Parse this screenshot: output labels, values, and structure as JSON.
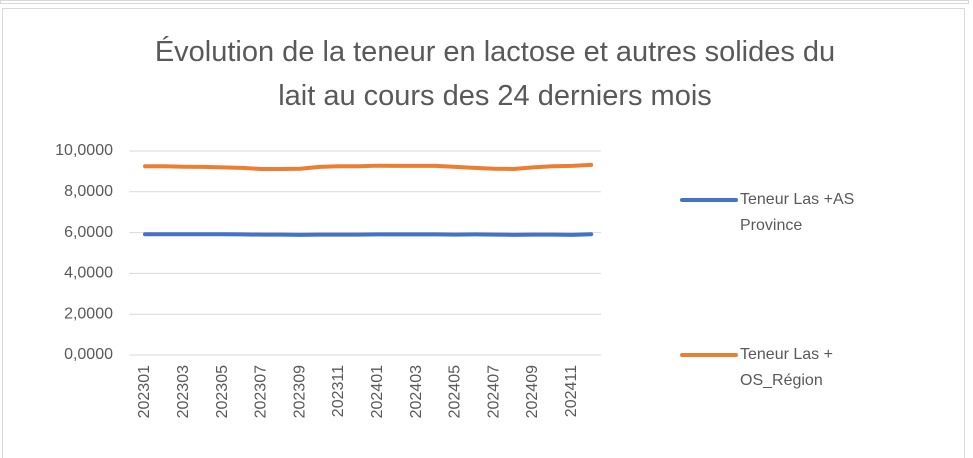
{
  "chart_data": {
    "type": "line",
    "title": "Évolution de la teneur en lactose et autres solides du lait au cours des 24 derniers mois",
    "categories": [
      "202301",
      null,
      "202303",
      null,
      "202305",
      null,
      "202307",
      null,
      "202309",
      null,
      "202311",
      null,
      "202401",
      null,
      "202403",
      null,
      "202405",
      null,
      "202407",
      null,
      "202409",
      null,
      "202411",
      null
    ],
    "series": [
      {
        "name": "Teneur Las +AS Province",
        "color": "#4472c4",
        "values": [
          5.92,
          5.92,
          5.92,
          5.92,
          5.92,
          5.91,
          5.9,
          5.9,
          5.89,
          5.9,
          5.9,
          5.9,
          5.91,
          5.91,
          5.91,
          5.91,
          5.9,
          5.91,
          5.9,
          5.89,
          5.9,
          5.9,
          5.89,
          5.92
        ]
      },
      {
        "name": "Teneur Las + OS_Région",
        "color": "#ed7d31",
        "values": [
          9.25,
          9.25,
          9.23,
          9.22,
          9.2,
          9.17,
          9.12,
          9.12,
          9.13,
          9.22,
          9.25,
          9.25,
          9.28,
          9.27,
          9.27,
          9.27,
          9.22,
          9.17,
          9.13,
          9.12,
          9.2,
          9.25,
          9.27,
          9.32
        ]
      }
    ],
    "ylim": [
      0,
      10
    ],
    "yticks": [
      {
        "value": 0,
        "label": "0,0000"
      },
      {
        "value": 2,
        "label": "2,0000"
      },
      {
        "value": 4,
        "label": "4,0000"
      },
      {
        "value": 6,
        "label": "6,0000"
      },
      {
        "value": 8,
        "label": "8,0000"
      },
      {
        "value": 10,
        "label": "10,0000"
      }
    ],
    "grid": true,
    "legend": "right"
  }
}
